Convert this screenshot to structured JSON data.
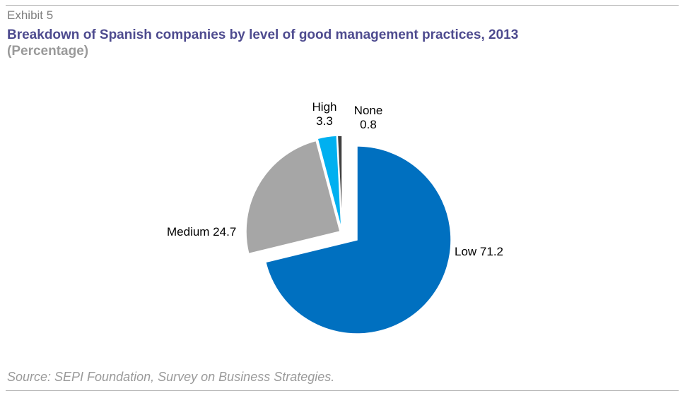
{
  "header": {
    "exhibit": "Exhibit 5",
    "title": "Breakdown of Spanish companies by level of good management practices, 2013",
    "subtitle": "(Percentage)"
  },
  "footer": {
    "source": "Source: SEPI Foundation, Survey on Business Strategies."
  },
  "chart_data": {
    "type": "pie",
    "title": "Breakdown of Spanish companies by level of good management practices, 2013",
    "subtitle": "(Percentage)",
    "legend": "none",
    "slices": [
      {
        "name": "Low",
        "value": 71.2,
        "color": "#0070c0",
        "label": "Low 71.2"
      },
      {
        "name": "Medium",
        "value": 24.7,
        "color": "#a6a6a6",
        "label": "Medium 24.7"
      },
      {
        "name": "High",
        "value": 3.3,
        "color": "#00b0f0",
        "label_line1": "High",
        "label_line2": "3.3"
      },
      {
        "name": "None",
        "value": 0.8,
        "color": "#404040",
        "label_line1": "None",
        "label_line2": "0.8"
      }
    ]
  }
}
